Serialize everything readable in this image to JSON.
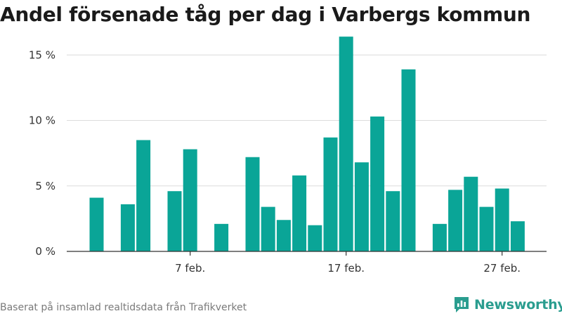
{
  "title": "Andel försenade tåg per dag i Varbergs kommun",
  "source": "Baserat på insamlad realtidsdata från Trafikverket",
  "brand": {
    "name": "Newsworthy",
    "color": "#2a9d8f"
  },
  "colors": {
    "bar": "#0aa597",
    "grid": "#dcdcdc",
    "axis": "#333333",
    "text": "#333333"
  },
  "chart_data": {
    "type": "bar",
    "x_tick_labels": [
      "7 feb.",
      "17 feb.",
      "27 feb."
    ],
    "y_tick_labels": [
      "0 %",
      "5 %",
      "10 %",
      "15 %"
    ],
    "ylim": [
      0,
      18.5
    ],
    "xlabel": "",
    "ylabel": "",
    "grid": true,
    "categories": [
      "1 feb.",
      "2 feb.",
      "3 feb.",
      "4 feb.",
      "5 feb.",
      "6 feb.",
      "7 feb.",
      "8 feb.",
      "9 feb.",
      "10 feb.",
      "11 feb.",
      "12 feb.",
      "13 feb.",
      "14 feb.",
      "15 feb.",
      "16 feb.",
      "17 feb.",
      "18 feb.",
      "19 feb.",
      "20 feb.",
      "21 feb.",
      "22 feb.",
      "23 feb.",
      "24 feb.",
      "25 feb.",
      "26 feb.",
      "27 feb.",
      "28 feb.",
      "29 feb."
    ],
    "values": [
      4.1,
      null,
      3.6,
      8.5,
      null,
      4.6,
      7.8,
      null,
      2.1,
      null,
      7.2,
      3.4,
      2.4,
      5.8,
      2.0,
      8.7,
      16.4,
      6.8,
      10.3,
      4.6,
      13.9,
      null,
      2.1,
      4.7,
      5.7,
      3.4,
      4.8,
      2.3,
      null
    ],
    "unit": "%"
  }
}
